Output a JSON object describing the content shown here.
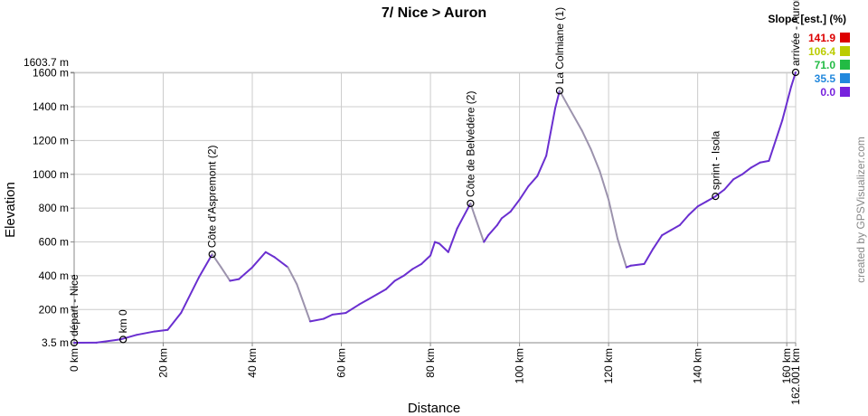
{
  "chart_data": {
    "type": "line",
    "title": "7/ Nice > Auron",
    "xlabel": "Distance",
    "ylabel": "Elevation",
    "xlim": [
      0,
      162.001
    ],
    "ylim": [
      3.5,
      1603.7
    ],
    "x_ticks": [
      {
        "value": 0,
        "label": "0 km"
      },
      {
        "value": 20,
        "label": "20 km"
      },
      {
        "value": 40,
        "label": "40 km"
      },
      {
        "value": 60,
        "label": "60 km"
      },
      {
        "value": 80,
        "label": "80 km"
      },
      {
        "value": 100,
        "label": "100 km"
      },
      {
        "value": 120,
        "label": "120 km"
      },
      {
        "value": 140,
        "label": "140 km"
      },
      {
        "value": 160,
        "label": "160 km"
      },
      {
        "value": 162.001,
        "label": "162.001 km"
      }
    ],
    "y_ticks": [
      {
        "value": 3.5,
        "label": "3.5 m"
      },
      {
        "value": 200,
        "label": "200 m"
      },
      {
        "value": 400,
        "label": "400 m"
      },
      {
        "value": 600,
        "label": "600 m"
      },
      {
        "value": 800,
        "label": "800 m"
      },
      {
        "value": 1000,
        "label": "1000 m"
      },
      {
        "value": 1200,
        "label": "1200 m"
      },
      {
        "value": 1400,
        "label": "1400 m"
      },
      {
        "value": 1600,
        "label": "1600 m"
      },
      {
        "value": 1603.7,
        "label": "1603.7 m"
      }
    ],
    "series": [
      {
        "x": [
          0,
          5,
          10.5,
          14,
          18,
          21,
          24,
          28,
          31,
          33,
          35,
          37,
          40,
          43,
          45,
          48,
          50,
          53,
          56,
          58,
          61,
          64,
          66,
          68,
          70,
          72,
          74,
          76,
          78,
          80,
          81,
          82,
          84,
          86,
          89,
          90,
          92,
          93,
          95,
          96,
          98,
          100,
          102,
          104,
          106,
          108,
          109,
          111,
          114,
          116,
          118,
          120,
          122,
          124,
          125,
          128,
          130,
          132,
          134,
          136,
          138,
          140,
          142,
          144,
          146,
          148,
          150,
          152,
          154,
          156,
          157,
          159,
          161,
          162.001
        ],
        "y": [
          3.5,
          4,
          24,
          50,
          70,
          80,
          180,
          390,
          527,
          450,
          370,
          380,
          450,
          540,
          510,
          450,
          350,
          130,
          145,
          170,
          180,
          230,
          260,
          290,
          320,
          370,
          400,
          440,
          470,
          520,
          600,
          590,
          540,
          680,
          828,
          750,
          600,
          640,
          700,
          740,
          780,
          850,
          930,
          990,
          1110,
          1390,
          1495,
          1400,
          1260,
          1150,
          1020,
          850,
          620,
          450,
          460,
          470,
          560,
          640,
          670,
          700,
          760,
          810,
          840,
          870,
          910,
          970,
          1000,
          1040,
          1070,
          1080,
          1160,
          1320,
          1520,
          1603.7
        ]
      }
    ],
    "waypoints": [
      {
        "x": 0,
        "y": 3.5,
        "label": "départ - Nice"
      },
      {
        "x": 11,
        "y": 23,
        "label": "km 0"
      },
      {
        "x": 31,
        "y": 527,
        "label": "Côte d'Aspremont (2)"
      },
      {
        "x": 89,
        "y": 828,
        "label": "Côte de Belvédère (2)"
      },
      {
        "x": 109,
        "y": 1495,
        "label": "La Colmiane (1)"
      },
      {
        "x": 144,
        "y": 870,
        "label": "sprint - Isola"
      },
      {
        "x": 162,
        "y": 1603.7,
        "label": "arrivée - Auron"
      }
    ],
    "legend": {
      "title": "Slope [est.] (%)",
      "items": [
        {
          "label": "141.9",
          "color": "#dd0000"
        },
        {
          "label": "106.4",
          "color": "#bbcc00"
        },
        {
          "label": "71.0",
          "color": "#22bb44"
        },
        {
          "label": "35.5",
          "color": "#2288dd"
        },
        {
          "label": "0.0",
          "color": "#7722dd"
        }
      ]
    },
    "grid": true,
    "legend_position": "top-right"
  },
  "credit": "created by GPSVisualizer.com",
  "colors": {
    "line_main": "#6a2fd0",
    "line_alt": "#9c93ad",
    "grid": "#cccccc",
    "axis": "#888888"
  }
}
